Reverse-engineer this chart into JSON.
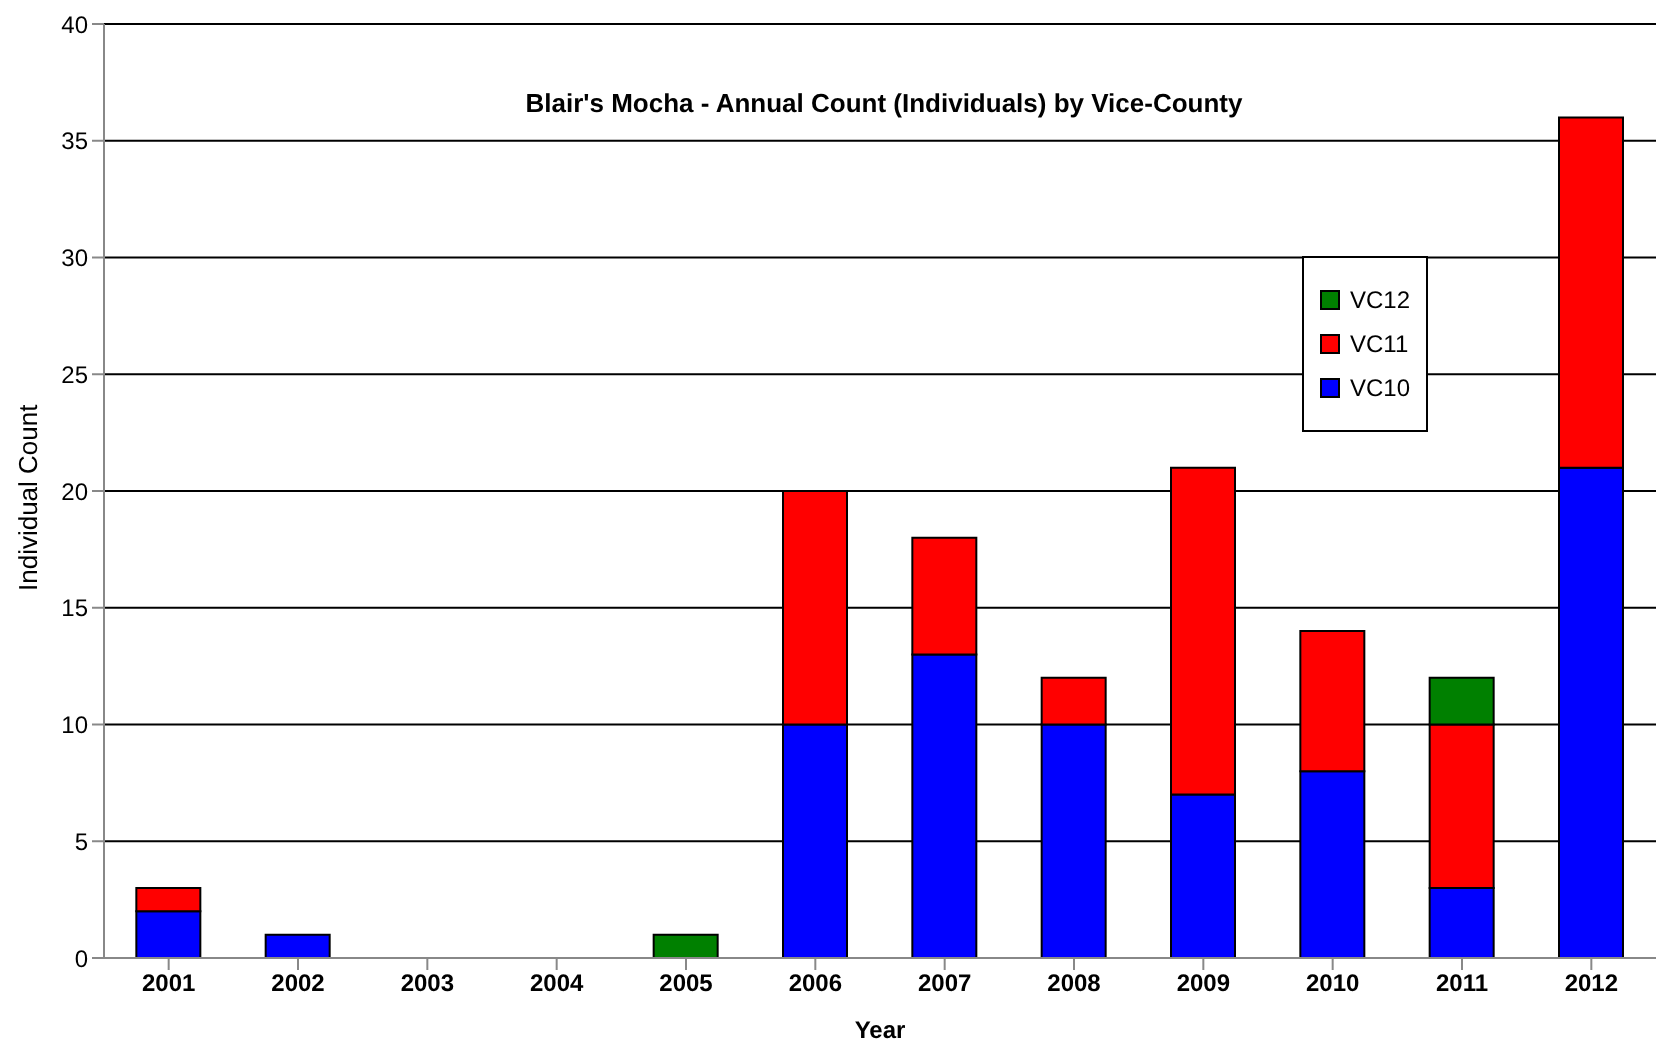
{
  "chart_data": {
    "type": "bar",
    "title": "Blair's Mocha - Annual Count (Individuals) by Vice-County",
    "xlabel": "Year",
    "ylabel": "Individual Count",
    "categories": [
      "2001",
      "2002",
      "2003",
      "2004",
      "2005",
      "2006",
      "2007",
      "2008",
      "2009",
      "2010",
      "2011",
      "2012"
    ],
    "series": [
      {
        "name": "VC10",
        "color": "#0000ff",
        "values": [
          2,
          1,
          0,
          0,
          0,
          10,
          13,
          10,
          7,
          8,
          3,
          21
        ]
      },
      {
        "name": "VC11",
        "color": "#ff0000",
        "values": [
          1,
          0,
          0,
          0,
          0,
          10,
          5,
          2,
          14,
          6,
          7,
          15
        ]
      },
      {
        "name": "VC12",
        "color": "#008000",
        "values": [
          0,
          0,
          0,
          0,
          1,
          0,
          0,
          0,
          0,
          0,
          2,
          0
        ]
      }
    ],
    "stacked": true,
    "ylim": [
      0,
      40
    ],
    "yticks": [
      0,
      5,
      10,
      15,
      20,
      25,
      30,
      35,
      40
    ],
    "grid": "y",
    "legend": "top right"
  }
}
